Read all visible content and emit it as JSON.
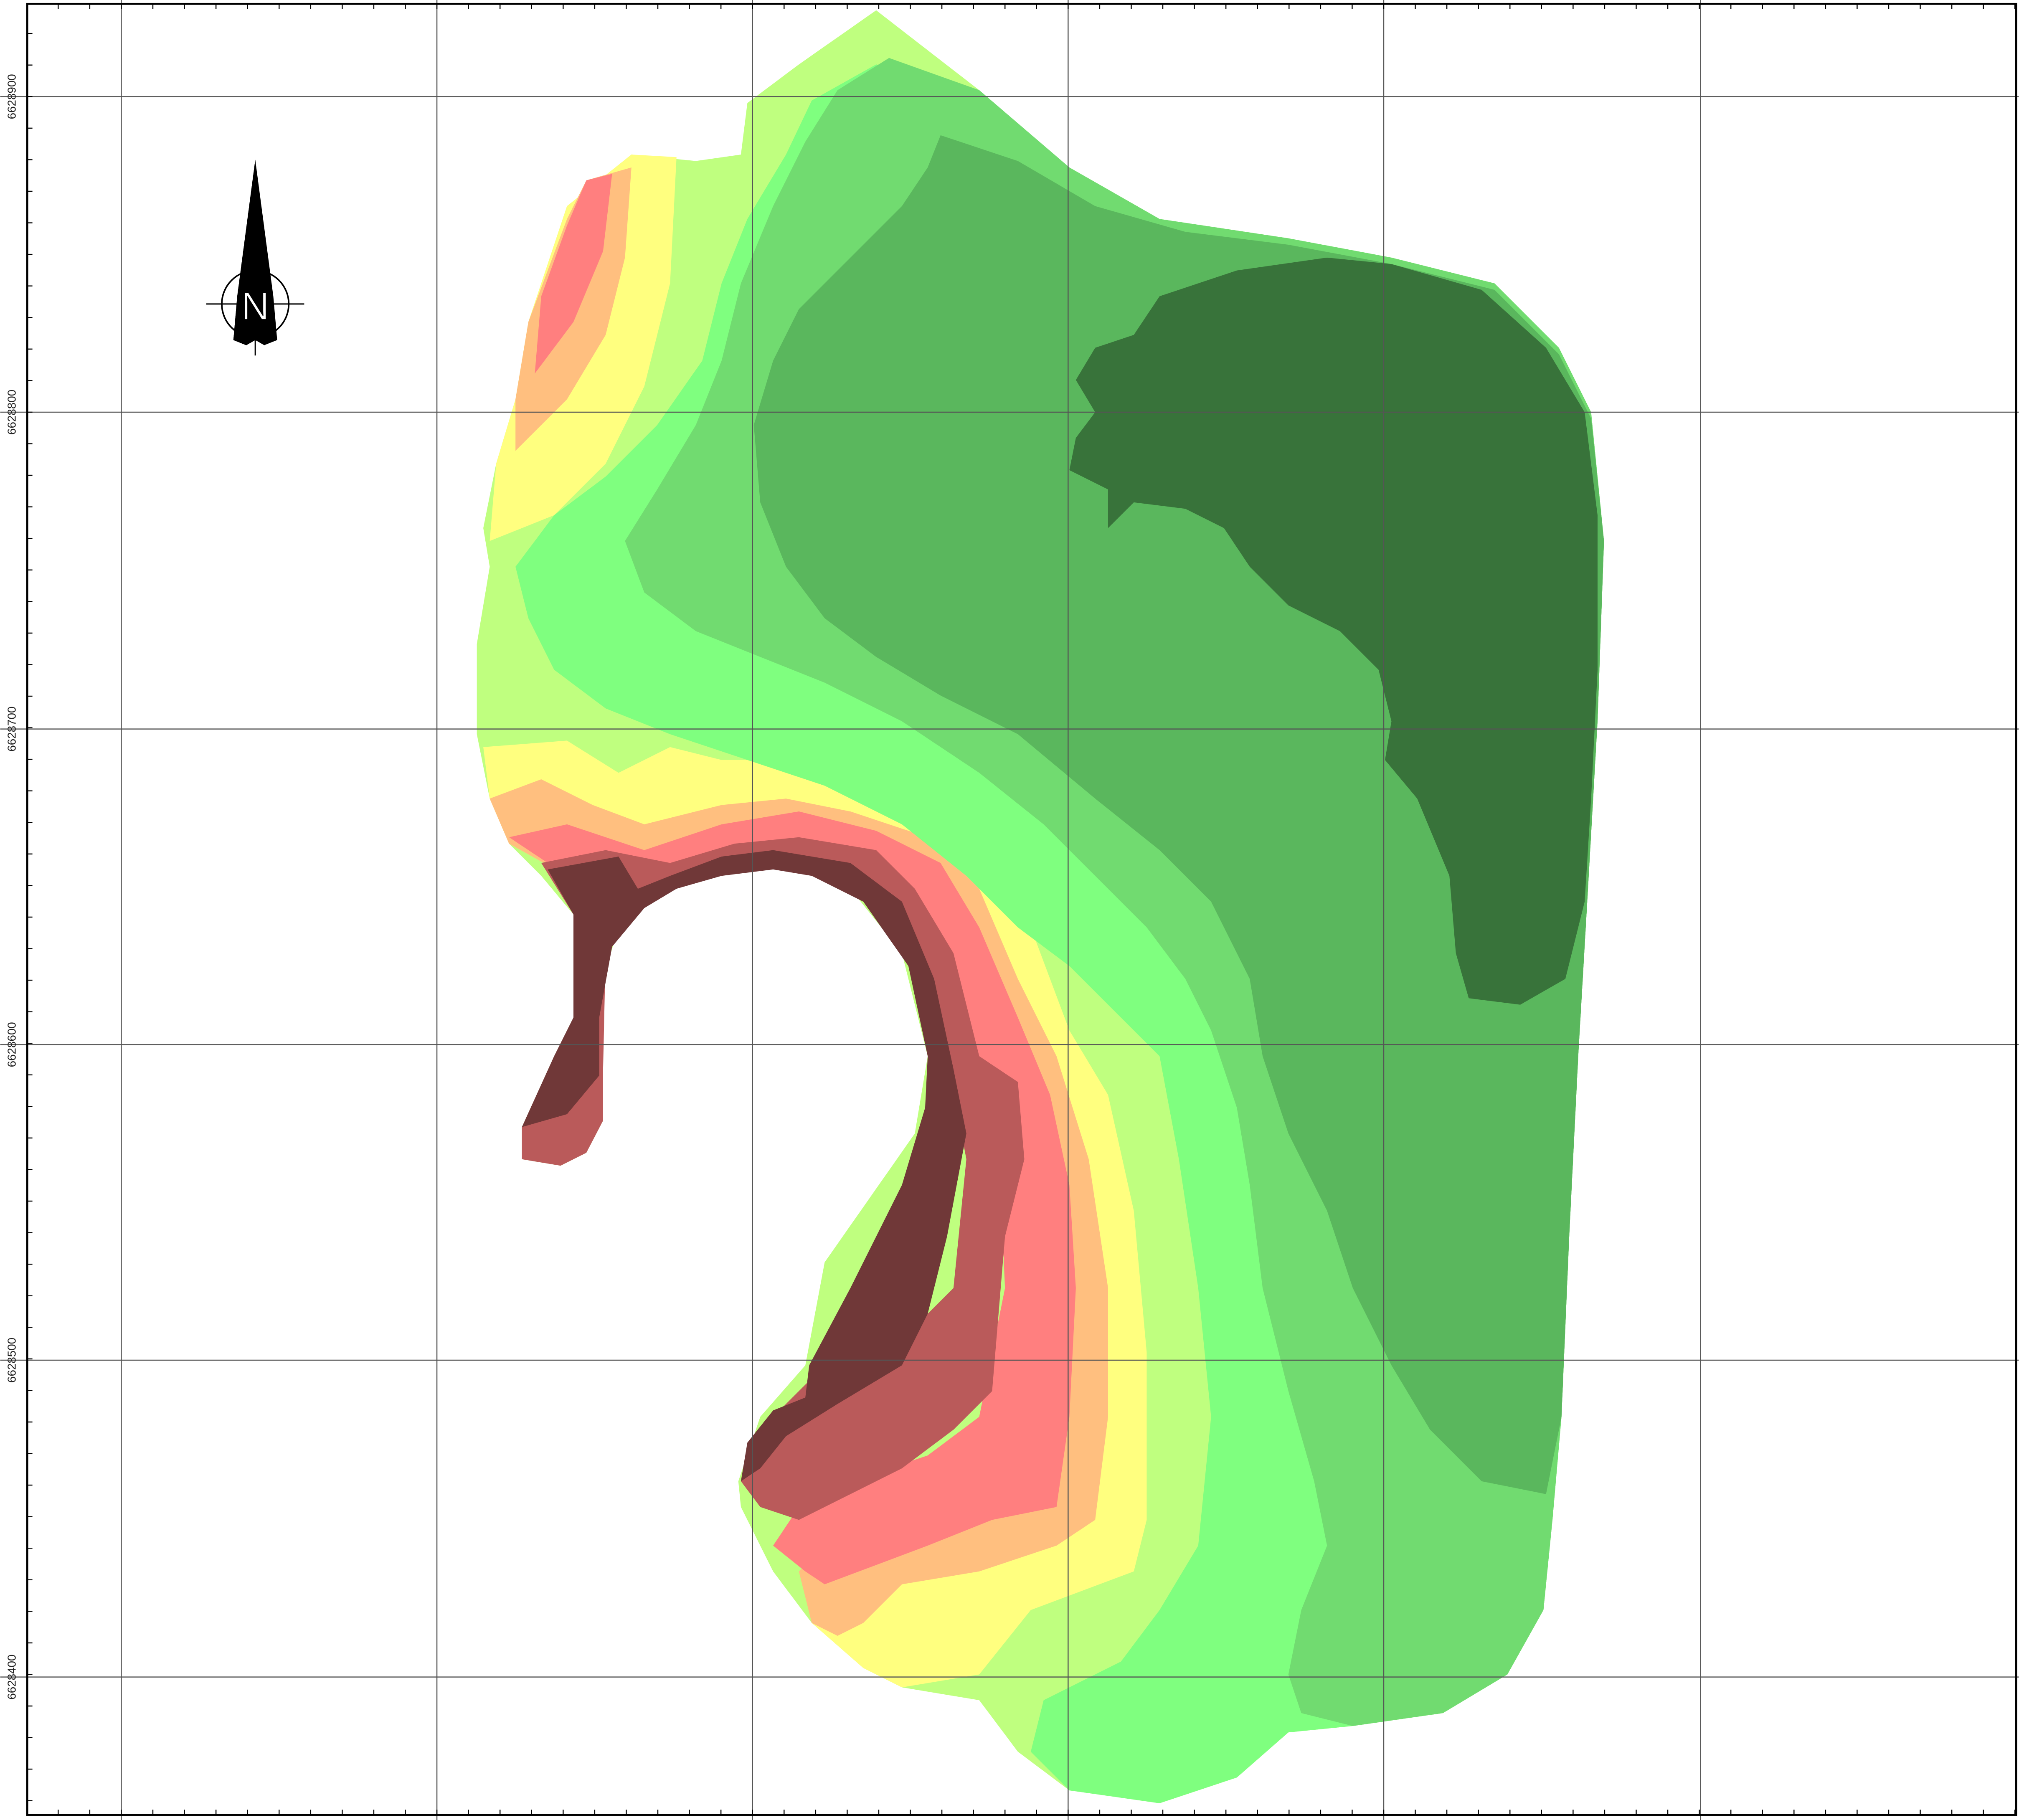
{
  "map": {
    "type": "raster-zone-map",
    "north_arrow": {
      "icon": "north-arrow-icon",
      "label": "N"
    },
    "y_tick_labels": [
      "6628900",
      "6628800",
      "6628700",
      "6628600",
      "6628500",
      "6628400"
    ],
    "grid": true,
    "zone_colors": {
      "darkest_green": "#38733A",
      "dark_green": "#5AB75D",
      "medium_green": "#71DB70",
      "light_green": "#7FFF7F",
      "yellow_green": "#BFFF7F",
      "yellow": "#FFFF7F",
      "orange": "#FFBF7F",
      "salmon": "#FF7F7F",
      "red_brown": "#BA5A5A",
      "dark_brown": "#703838"
    },
    "frame_color": "#000000",
    "grid_color": "#555555"
  }
}
